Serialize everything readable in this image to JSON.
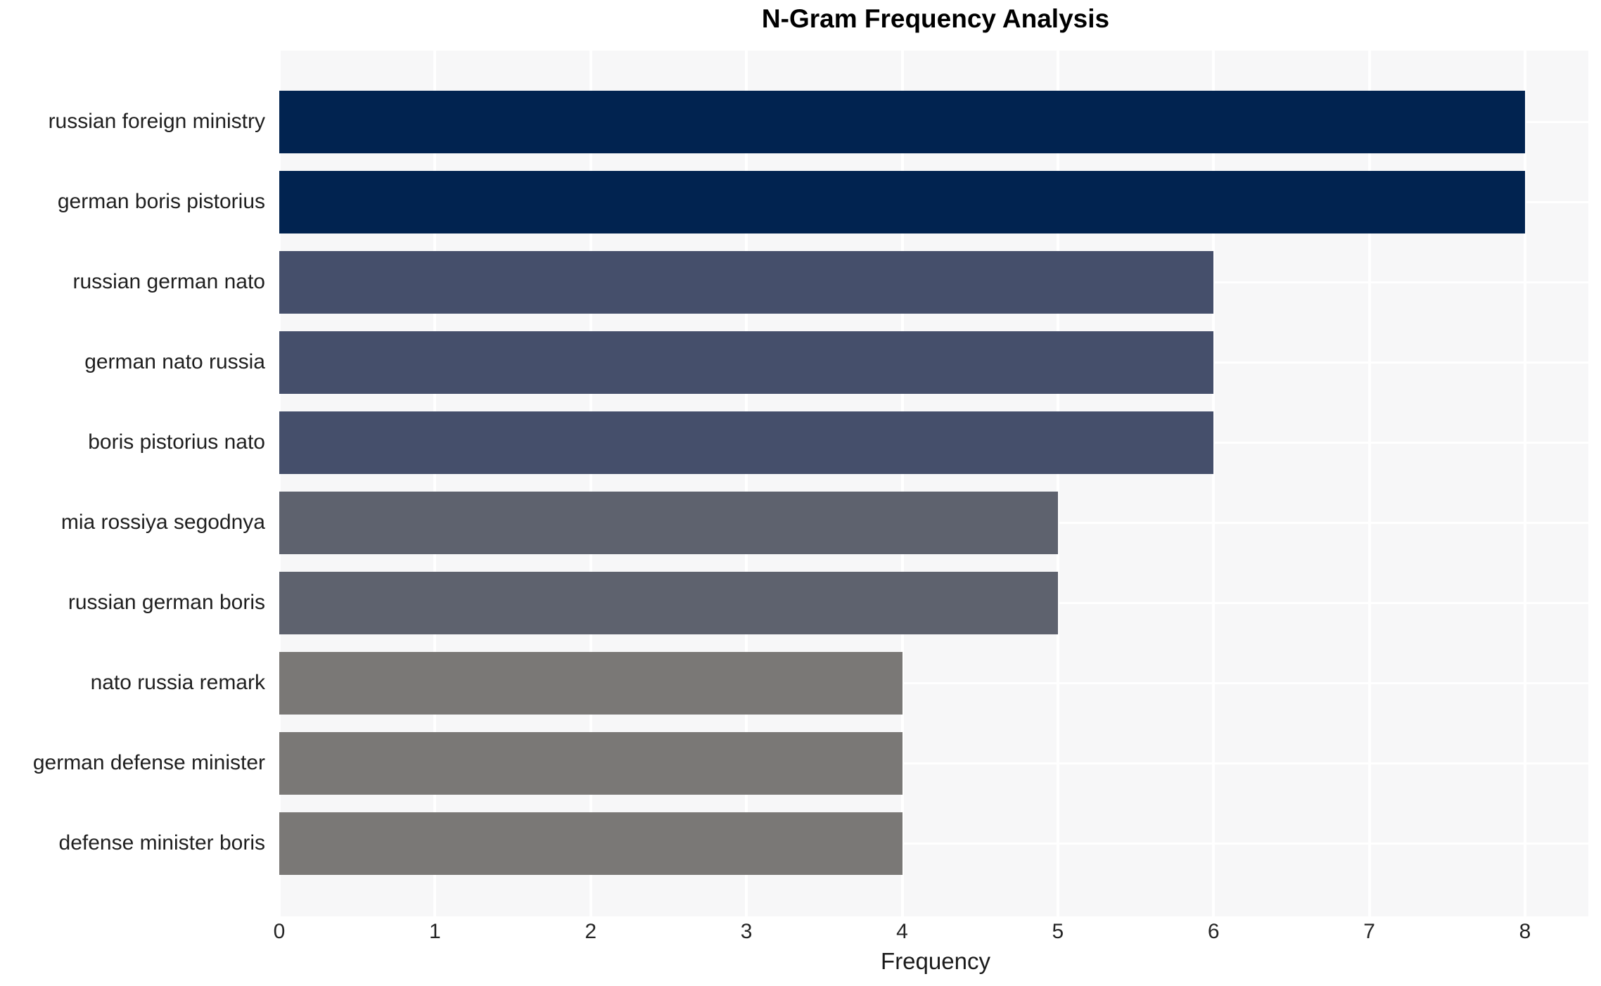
{
  "chart_data": {
    "type": "bar",
    "orientation": "horizontal",
    "title": "N-Gram Frequency Analysis",
    "xlabel": "Frequency",
    "ylabel": "",
    "categories": [
      "russian foreign ministry",
      "german boris pistorius",
      "russian german nato",
      "german nato russia",
      "boris pistorius nato",
      "mia rossiya segodnya",
      "russian german boris",
      "nato russia remark",
      "german defense minister",
      "defense minister boris"
    ],
    "values": [
      8,
      8,
      6,
      6,
      6,
      5,
      5,
      4,
      4,
      4
    ],
    "bar_colors": [
      "#012350",
      "#012350",
      "#454f6b",
      "#454f6b",
      "#454f6b",
      "#5e626e",
      "#5e626e",
      "#7a7876",
      "#7a7876",
      "#7a7876"
    ],
    "xticks": [
      0,
      1,
      2,
      3,
      4,
      5,
      6,
      7,
      8
    ],
    "xlim": [
      0,
      8.4
    ],
    "grid": true,
    "legend": "none",
    "plot_bg_color": "#f7f7f8",
    "grid_color": "#ffffff",
    "title_color": "#000000",
    "text_color": "#1f1f1f"
  }
}
